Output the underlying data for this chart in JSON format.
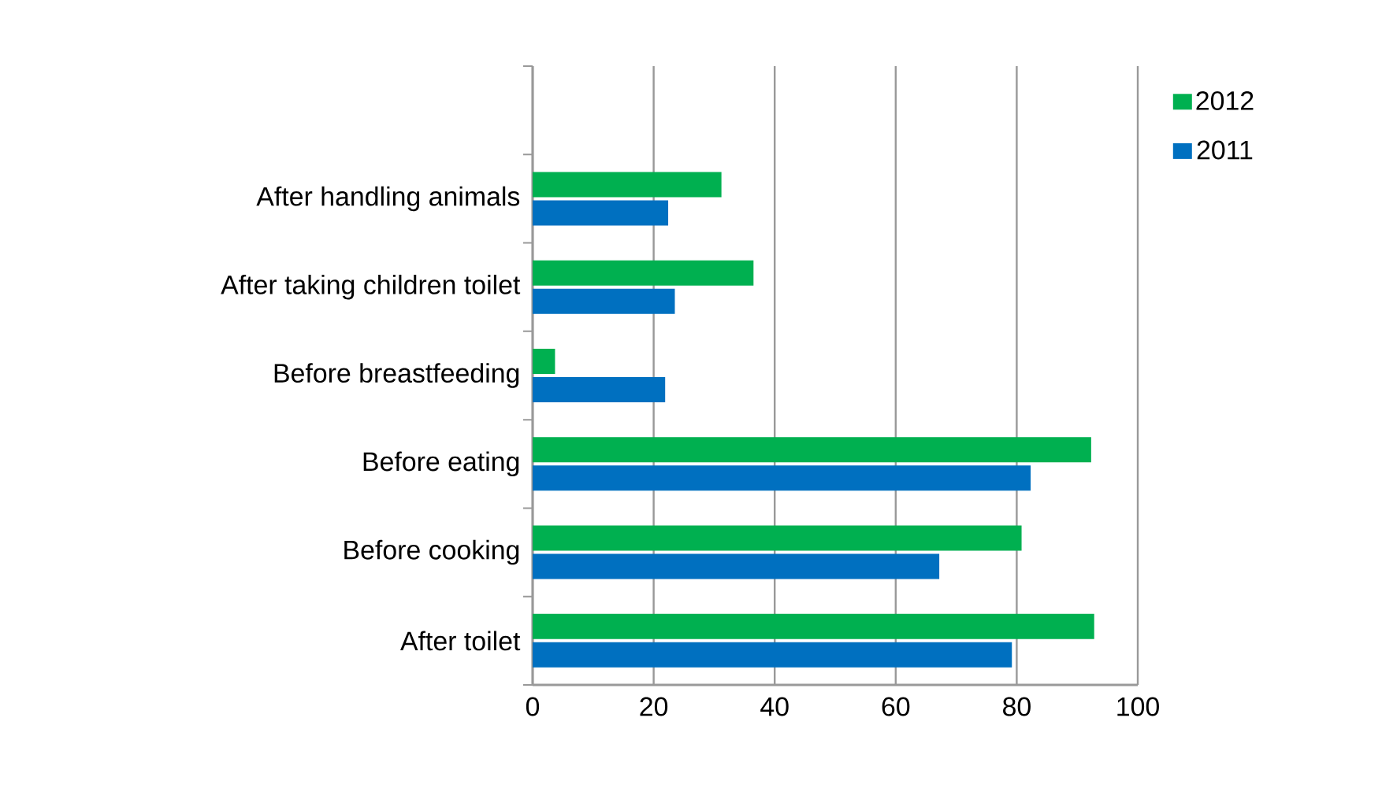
{
  "chart_data": {
    "type": "bar",
    "orientation": "horizontal",
    "categories": [
      null,
      "After handling animals",
      "After taking children toilet",
      "Before breastfeeding",
      "Before eating",
      "Before cooking",
      "After toilet"
    ],
    "series": [
      {
        "name": "2012",
        "color": "#00b050",
        "values": [
          null,
          31.2,
          36.5,
          3.7,
          92.3,
          80.8,
          92.8
        ]
      },
      {
        "name": "2011",
        "color": "#0070c0",
        "values": [
          null,
          22.4,
          23.5,
          21.9,
          82.3,
          67.2,
          79.2
        ]
      }
    ],
    "xlim": [
      0,
      100
    ],
    "xticks": [
      0,
      20,
      40,
      60,
      80,
      100
    ],
    "grid": "x",
    "legend": "top right"
  }
}
